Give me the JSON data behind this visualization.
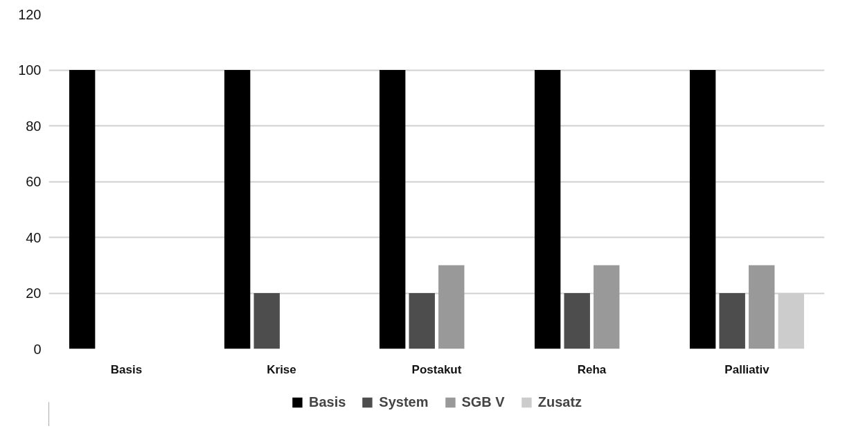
{
  "chart_data": {
    "type": "bar",
    "categories": [
      "Basis",
      "Krise",
      "Postakut",
      "Reha",
      "Palliativ"
    ],
    "series": [
      {
        "name": "Basis",
        "color": "#000000",
        "values": [
          100,
          100,
          100,
          100,
          100
        ]
      },
      {
        "name": "System",
        "color": "#4d4d4d",
        "values": [
          null,
          20,
          20,
          20,
          20
        ]
      },
      {
        "name": "SGB V",
        "color": "#999999",
        "values": [
          null,
          null,
          30,
          30,
          30
        ]
      },
      {
        "name": "Zusatz",
        "color": "#cccccc",
        "values": [
          null,
          null,
          null,
          null,
          20
        ]
      }
    ],
    "ylim": [
      0,
      120
    ],
    "yticks": [
      0,
      20,
      40,
      60,
      80,
      100,
      120
    ],
    "grid": "y",
    "legend": "bottom"
  }
}
